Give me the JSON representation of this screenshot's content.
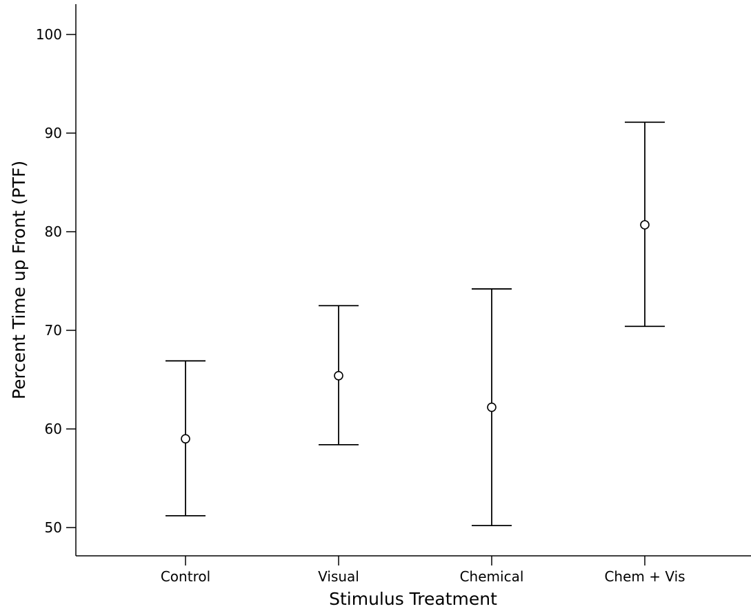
{
  "chart_data": {
    "type": "errorbar",
    "title": "",
    "xlabel": "Stimulus Treatment",
    "ylabel": "Percent Time up Front (PTF)",
    "categories": [
      "Control",
      "Visual",
      "Chemical",
      "Chem + Vis"
    ],
    "series": [
      {
        "means": [
          59.0,
          65.4,
          62.2,
          80.7
        ],
        "lower": [
          51.2,
          58.4,
          50.2,
          70.4
        ],
        "upper": [
          66.9,
          72.5,
          74.2,
          91.1
        ]
      }
    ],
    "ylim": [
      47,
      103
    ],
    "yticks": [
      50,
      60,
      70,
      80,
      90,
      100
    ],
    "grid": false,
    "legend": "none",
    "colors": {
      "mark": "#000000",
      "axis": "#000000",
      "background": "#ffffff"
    }
  }
}
